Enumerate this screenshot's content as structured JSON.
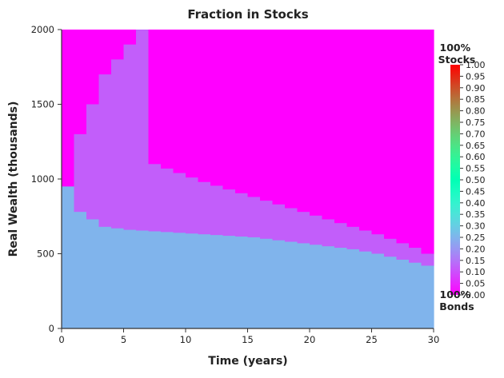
{
  "chart_data": {
    "type": "heatmap",
    "title": "Fraction in Stocks",
    "xlabel": "Time (years)",
    "ylabel": "Real Wealth (thousands)",
    "xlim": [
      0,
      30
    ],
    "ylim": [
      0,
      2000
    ],
    "x_ticks": [
      0,
      5,
      10,
      15,
      20,
      25,
      30
    ],
    "y_ticks": [
      0,
      500,
      1000,
      1500,
      2000
    ],
    "colormap": "rainbow",
    "colorbar": {
      "range": [
        0.0,
        1.0
      ],
      "ticks": [
        "0.00",
        "0.05",
        "0.10",
        "0.15",
        "0.20",
        "0.25",
        "0.30",
        "0.35",
        "0.40",
        "0.45",
        "0.50",
        "0.55",
        "0.60",
        "0.65",
        "0.70",
        "0.75",
        "0.80",
        "0.85",
        "0.90",
        "0.95",
        "1.00"
      ],
      "top_label": [
        "100%",
        "Stocks"
      ],
      "bottom_label": [
        "100%",
        "Bonds"
      ]
    },
    "time_step_years": 1,
    "bond_region_fraction": 0.25,
    "min_fraction": 0.0,
    "bond_region_upper_wealth": [
      950,
      780,
      730,
      680,
      670,
      660,
      655,
      650,
      645,
      640,
      635,
      630,
      625,
      620,
      615,
      610,
      600,
      590,
      580,
      570,
      560,
      550,
      540,
      530,
      515,
      500,
      480,
      460,
      440,
      420
    ],
    "transition_upper_wealth": [
      950,
      1300,
      1500,
      1700,
      1800,
      1900,
      2000,
      1100,
      1070,
      1040,
      1010,
      980,
      955,
      930,
      905,
      880,
      855,
      830,
      805,
      780,
      755,
      730,
      705,
      680,
      655,
      630,
      600,
      570,
      540,
      500
    ],
    "transition_fraction": 0.12,
    "grid": false
  }
}
